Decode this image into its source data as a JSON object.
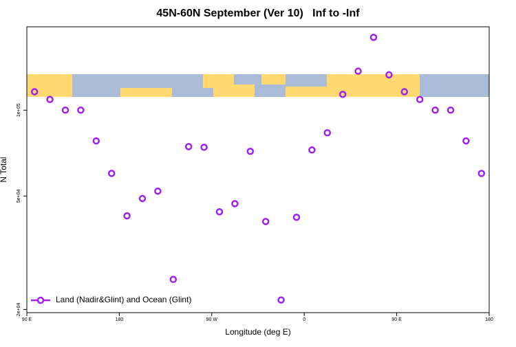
{
  "chart_data": {
    "type": "scatter",
    "title": "45N-60N September (Ver 10)   Inf to -Inf",
    "x_label": "Longitude (deg E)",
    "y_label": "N Total",
    "x": [
      97.5,
      112.5,
      127.5,
      142.5,
      157.5,
      172.5,
      187.5,
      202.5,
      217.5,
      232.5,
      247.5,
      262.5,
      277.5,
      292.5,
      307.5,
      322.5,
      337.5,
      352.5,
      367.5,
      382.5,
      397.5,
      412.5,
      427.5,
      442.5,
      457.5,
      472.5,
      487.5,
      502.5,
      517.5,
      532.5
    ],
    "series": [
      {
        "name": "Land (Nadir&Glint) and Ocean (Glint)",
        "color": "#a020f0",
        "values": [
          116000,
          109000,
          100000,
          100000,
          78000,
          60000,
          42600,
          49000,
          52000,
          25500,
          74500,
          74100,
          44000,
          47000,
          71700,
          40700,
          21600,
          42100,
          72500,
          83300,
          113600,
          137000,
          180000,
          133000,
          116000,
          109000,
          100000,
          100000,
          78000,
          60000
        ]
      }
    ],
    "xlim": [
      90,
      540
    ],
    "xticks": [
      {
        "value": 90,
        "label": "90 E"
      },
      180,
      {
        "value": 270,
        "label": "90 W"
      },
      {
        "value": 360,
        "label": "0"
      },
      {
        "value": 450,
        "label": "90 E"
      },
      {
        "value": 540,
        "label": "180"
      }
    ],
    "ylim": [
      19500,
      196000
    ],
    "log_y": true,
    "yticks": [
      {
        "value": 20000,
        "label": "2e+04"
      },
      {
        "value": 50000,
        "label": "5e+04"
      },
      {
        "value": 100000,
        "label": "1e+05"
      }
    ],
    "legend": "bottom-left"
  }
}
